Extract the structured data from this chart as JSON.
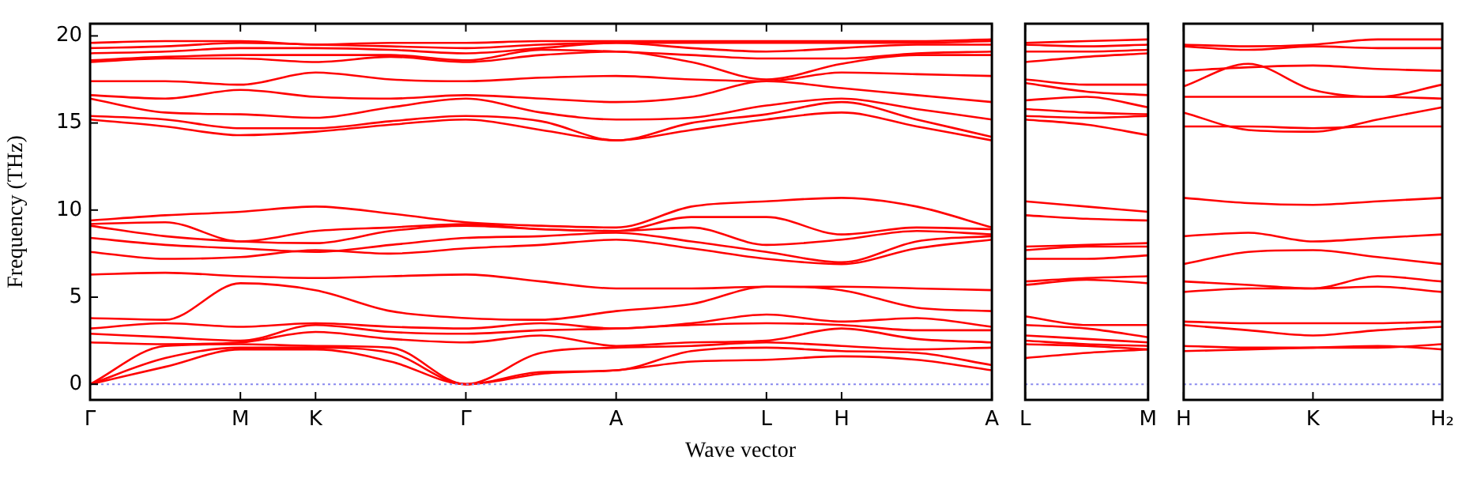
{
  "chart_data": [
    {
      "type": "line",
      "ylabel": "Frequency (THz)",
      "xlabel": "Wave vector",
      "categories": [
        "Γ",
        null,
        "M",
        "K",
        null,
        "Γ",
        null,
        "A",
        null,
        "L",
        "H",
        null,
        "A"
      ],
      "ylim": [
        -0.9,
        20.7
      ],
      "yticks": [
        0,
        5,
        10,
        15,
        20
      ],
      "ref_lines": [
        {
          "axis": "y",
          "value": 0,
          "color": "#8888ee",
          "line_style": "dotted"
        }
      ],
      "series": [
        {
          "color": "#ff0000",
          "values": [
            0,
            1.0,
            2.0,
            2.0,
            1.3,
            0,
            0.6,
            0.8,
            1.3,
            1.4,
            1.6,
            1.4,
            0.8
          ]
        },
        {
          "color": "#ff0000",
          "values": [
            0,
            1.5,
            2.1,
            2.1,
            1.8,
            0,
            0.7,
            0.8,
            1.9,
            2.1,
            1.9,
            1.8,
            1.1
          ]
        },
        {
          "color": "#ff0000",
          "values": [
            0,
            2.2,
            2.3,
            2.2,
            2.1,
            0,
            1.8,
            2.1,
            2.2,
            2.4,
            2.2,
            2.0,
            2.1
          ]
        },
        {
          "color": "#ff0000",
          "values": [
            2.4,
            2.3,
            2.4,
            3.0,
            2.6,
            2.4,
            2.8,
            2.2,
            2.4,
            2.5,
            3.2,
            2.6,
            2.4
          ]
        },
        {
          "color": "#ff0000",
          "values": [
            2.9,
            2.7,
            2.5,
            3.4,
            3.0,
            2.9,
            3.1,
            3.2,
            3.4,
            3.5,
            3.4,
            3.1,
            3.1
          ]
        },
        {
          "color": "#ff0000",
          "values": [
            3.2,
            3.5,
            3.3,
            3.5,
            3.3,
            3.2,
            3.5,
            3.2,
            3.5,
            4.0,
            3.6,
            3.8,
            3.3
          ]
        },
        {
          "color": "#ff0000",
          "values": [
            3.8,
            3.7,
            5.8,
            5.4,
            4.2,
            3.8,
            3.7,
            4.2,
            4.6,
            5.6,
            5.4,
            4.4,
            4.2
          ]
        },
        {
          "color": "#ff0000",
          "values": [
            6.3,
            6.4,
            6.2,
            6.1,
            6.2,
            6.3,
            5.9,
            5.5,
            5.5,
            5.6,
            5.6,
            5.5,
            5.4
          ]
        },
        {
          "color": "#ff0000",
          "values": [
            7.6,
            7.2,
            7.3,
            7.7,
            7.5,
            7.8,
            8.0,
            8.3,
            7.8,
            7.2,
            6.9,
            7.8,
            8.3
          ]
        },
        {
          "color": "#ff0000",
          "values": [
            8.4,
            8.0,
            7.8,
            7.6,
            8.0,
            8.4,
            8.5,
            8.7,
            8.2,
            7.6,
            7.0,
            8.2,
            8.5
          ]
        },
        {
          "color": "#ff0000",
          "values": [
            9.1,
            8.5,
            8.2,
            8.1,
            8.8,
            9.1,
            8.9,
            8.8,
            9.0,
            8.0,
            8.3,
            8.8,
            8.6
          ]
        },
        {
          "color": "#ff0000",
          "values": [
            9.2,
            9.3,
            8.2,
            8.8,
            9.0,
            9.2,
            8.9,
            8.8,
            9.6,
            9.6,
            8.6,
            9.0,
            8.9
          ]
        },
        {
          "color": "#ff0000",
          "values": [
            9.4,
            9.7,
            9.9,
            10.2,
            9.8,
            9.3,
            9.1,
            9.0,
            10.2,
            10.5,
            10.7,
            10.2,
            9.0
          ]
        },
        {
          "color": "#ff0000",
          "values": [
            15.2,
            14.8,
            14.3,
            14.5,
            14.9,
            15.2,
            14.6,
            14.0,
            14.6,
            15.2,
            15.6,
            14.8,
            14.0
          ]
        },
        {
          "color": "#ff0000",
          "values": [
            15.4,
            15.2,
            14.7,
            14.7,
            15.1,
            15.4,
            15.1,
            14.0,
            15.0,
            15.5,
            16.2,
            15.2,
            14.2
          ]
        },
        {
          "color": "#ff0000",
          "values": [
            16.4,
            15.6,
            15.5,
            15.3,
            15.9,
            16.4,
            15.6,
            15.2,
            15.3,
            16.0,
            16.4,
            15.8,
            15.2
          ]
        },
        {
          "color": "#ff0000",
          "values": [
            16.6,
            16.4,
            16.9,
            16.5,
            16.4,
            16.6,
            16.4,
            16.2,
            16.5,
            17.4,
            17.0,
            16.6,
            16.2
          ]
        },
        {
          "color": "#ff0000",
          "values": [
            17.4,
            17.4,
            17.2,
            17.9,
            17.5,
            17.4,
            17.6,
            17.7,
            17.5,
            17.4,
            17.9,
            17.8,
            17.7
          ]
        },
        {
          "color": "#ff0000",
          "values": [
            18.5,
            18.7,
            18.7,
            18.5,
            18.8,
            18.5,
            18.9,
            19.1,
            18.5,
            17.5,
            18.4,
            18.9,
            18.9
          ]
        },
        {
          "color": "#ff0000",
          "values": [
            18.6,
            18.8,
            18.9,
            18.9,
            18.9,
            18.6,
            19.2,
            19.1,
            18.9,
            18.7,
            18.7,
            19.0,
            19.1
          ]
        },
        {
          "color": "#ff0000",
          "values": [
            19.0,
            19.1,
            19.3,
            19.3,
            19.2,
            19.0,
            19.3,
            19.6,
            19.3,
            19.1,
            19.3,
            19.5,
            19.5
          ]
        },
        {
          "color": "#ff0000",
          "values": [
            19.3,
            19.4,
            19.6,
            19.5,
            19.4,
            19.3,
            19.5,
            19.6,
            19.6,
            19.6,
            19.6,
            19.6,
            19.7
          ]
        },
        {
          "color": "#ff0000",
          "values": [
            19.6,
            19.7,
            19.7,
            19.5,
            19.6,
            19.6,
            19.7,
            19.7,
            19.7,
            19.7,
            19.7,
            19.7,
            19.8
          ]
        }
      ]
    },
    {
      "type": "line",
      "tick_labels": "x",
      "categories": [
        "L",
        null,
        "M"
      ],
      "ylim": [
        -0.9,
        20.7
      ],
      "yticks": [
        0,
        5,
        10,
        15,
        20
      ],
      "ref_lines": [
        {
          "axis": "y",
          "value": 0,
          "color": "#8888ee",
          "line_style": "dotted"
        }
      ],
      "series": [
        {
          "color": "#ff0000",
          "values": [
            1.5,
            1.8,
            2.0
          ]
        },
        {
          "color": "#ff0000",
          "values": [
            2.3,
            2.2,
            2.0
          ]
        },
        {
          "color": "#ff0000",
          "values": [
            2.5,
            2.3,
            2.2
          ]
        },
        {
          "color": "#ff0000",
          "values": [
            2.8,
            2.6,
            2.4
          ]
        },
        {
          "color": "#ff0000",
          "values": [
            3.4,
            3.2,
            2.7
          ]
        },
        {
          "color": "#ff0000",
          "values": [
            3.9,
            3.4,
            3.4
          ]
        },
        {
          "color": "#ff0000",
          "values": [
            5.7,
            6.0,
            5.8
          ]
        },
        {
          "color": "#ff0000",
          "values": [
            5.9,
            6.1,
            6.2
          ]
        },
        {
          "color": "#ff0000",
          "values": [
            7.2,
            7.2,
            7.4
          ]
        },
        {
          "color": "#ff0000",
          "values": [
            7.7,
            7.9,
            7.9
          ]
        },
        {
          "color": "#ff0000",
          "values": [
            7.9,
            8.0,
            8.1
          ]
        },
        {
          "color": "#ff0000",
          "values": [
            9.7,
            9.5,
            9.4
          ]
        },
        {
          "color": "#ff0000",
          "values": [
            10.5,
            10.2,
            9.9
          ]
        },
        {
          "color": "#ff0000",
          "values": [
            15.2,
            14.9,
            14.3
          ]
        },
        {
          "color": "#ff0000",
          "values": [
            15.4,
            15.3,
            15.4
          ]
        },
        {
          "color": "#ff0000",
          "values": [
            15.8,
            15.6,
            15.5
          ]
        },
        {
          "color": "#ff0000",
          "values": [
            16.3,
            16.5,
            15.9
          ]
        },
        {
          "color": "#ff0000",
          "values": [
            17.3,
            16.8,
            16.6
          ]
        },
        {
          "color": "#ff0000",
          "values": [
            17.5,
            17.2,
            17.2
          ]
        },
        {
          "color": "#ff0000",
          "values": [
            18.5,
            18.8,
            19.0
          ]
        },
        {
          "color": "#ff0000",
          "values": [
            19.1,
            19.1,
            19.2
          ]
        },
        {
          "color": "#ff0000",
          "values": [
            19.5,
            19.4,
            19.5
          ]
        },
        {
          "color": "#ff0000",
          "values": [
            19.6,
            19.7,
            19.8
          ]
        }
      ]
    },
    {
      "type": "line",
      "tick_labels": "x",
      "categories": [
        "H",
        null,
        "K",
        null,
        "H₂"
      ],
      "ylim": [
        -0.9,
        20.7
      ],
      "yticks": [
        0,
        5,
        10,
        15,
        20
      ],
      "ref_lines": [
        {
          "axis": "y",
          "value": 0,
          "color": "#8888ee",
          "line_style": "dotted"
        }
      ],
      "series": [
        {
          "color": "#ff0000",
          "values": [
            1.9,
            2.0,
            2.1,
            2.2,
            2.0
          ]
        },
        {
          "color": "#ff0000",
          "values": [
            2.2,
            2.1,
            2.1,
            2.1,
            2.3
          ]
        },
        {
          "color": "#ff0000",
          "values": [
            3.4,
            3.1,
            2.8,
            3.1,
            3.3
          ]
        },
        {
          "color": "#ff0000",
          "values": [
            3.6,
            3.5,
            3.5,
            3.5,
            3.6
          ]
        },
        {
          "color": "#ff0000",
          "values": [
            5.3,
            5.5,
            5.5,
            5.6,
            5.3
          ]
        },
        {
          "color": "#ff0000",
          "values": [
            5.9,
            5.7,
            5.5,
            6.2,
            5.9
          ]
        },
        {
          "color": "#ff0000",
          "values": [
            6.9,
            7.6,
            7.7,
            7.3,
            6.9
          ]
        },
        {
          "color": "#ff0000",
          "values": [
            8.5,
            8.7,
            8.2,
            8.4,
            8.6
          ]
        },
        {
          "color": "#ff0000",
          "values": [
            10.7,
            10.4,
            10.3,
            10.5,
            10.7
          ]
        },
        {
          "color": "#ff0000",
          "values": [
            14.8,
            14.8,
            14.7,
            14.8,
            14.8
          ]
        },
        {
          "color": "#ff0000",
          "values": [
            15.6,
            14.6,
            14.5,
            15.2,
            15.9
          ]
        },
        {
          "color": "#ff0000",
          "values": [
            16.5,
            16.5,
            16.5,
            16.5,
            16.4
          ]
        },
        {
          "color": "#ff0000",
          "values": [
            17.1,
            18.4,
            16.9,
            16.5,
            17.2
          ]
        },
        {
          "color": "#ff0000",
          "values": [
            18.0,
            18.2,
            18.3,
            18.1,
            18.0
          ]
        },
        {
          "color": "#ff0000",
          "values": [
            19.4,
            19.2,
            19.4,
            19.3,
            19.3
          ]
        },
        {
          "color": "#ff0000",
          "values": [
            19.5,
            19.4,
            19.5,
            19.8,
            19.8
          ]
        }
      ]
    }
  ]
}
